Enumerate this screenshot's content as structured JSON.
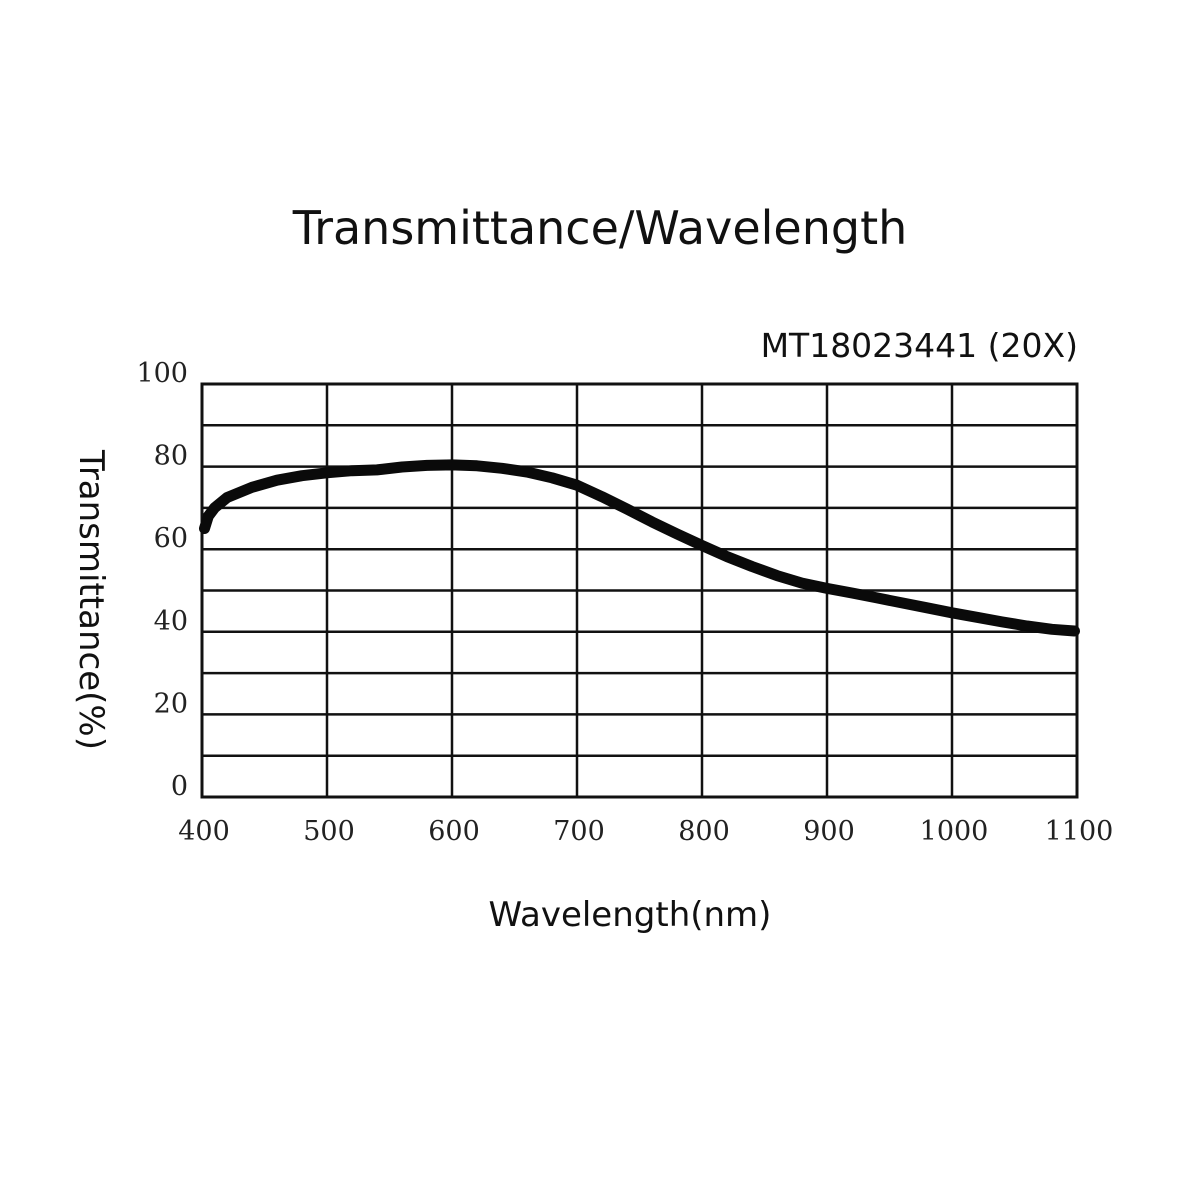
{
  "chart_data": {
    "type": "line",
    "title": "Transmittance/Wavelength",
    "subtitle": "MT18023441 (20X)",
    "xlabel": "Wavelength(nm)",
    "ylabel": "Transmittance(%)",
    "xlim": [
      400,
      1100
    ],
    "ylim": [
      0,
      100
    ],
    "x_ticks": [
      400,
      500,
      600,
      700,
      800,
      900,
      1000,
      1100
    ],
    "y_ticks": [
      0,
      20,
      40,
      60,
      80,
      100
    ],
    "y_gridlines": [
      0,
      10,
      20,
      30,
      40,
      50,
      60,
      70,
      80,
      90,
      100
    ],
    "x_gridlines": [
      400,
      500,
      600,
      700,
      800,
      900,
      1000,
      1100
    ],
    "grid": true,
    "legend": "none",
    "series": [
      {
        "x": [
          402,
          405,
          410,
          420,
          440,
          460,
          480,
          500,
          520,
          540,
          560,
          580,
          600,
          620,
          640,
          660,
          680,
          700,
          720,
          740,
          760,
          780,
          800,
          820,
          840,
          860,
          880,
          900,
          920,
          940,
          960,
          980,
          1000,
          1020,
          1040,
          1060,
          1080,
          1098
        ],
        "y": [
          65,
          68,
          70,
          72.5,
          75,
          76.7,
          77.8,
          78.5,
          79,
          79.2,
          79.9,
          80.3,
          80.4,
          80.2,
          79.6,
          78.7,
          77.3,
          75.5,
          72.7,
          69.7,
          66.6,
          63.7,
          60.9,
          58.2,
          55.8,
          53.6,
          51.8,
          50.5,
          49.4,
          48.2,
          47,
          45.8,
          44.6,
          43.5,
          42.4,
          41.4,
          40.6,
          40.2
        ]
      }
    ]
  }
}
